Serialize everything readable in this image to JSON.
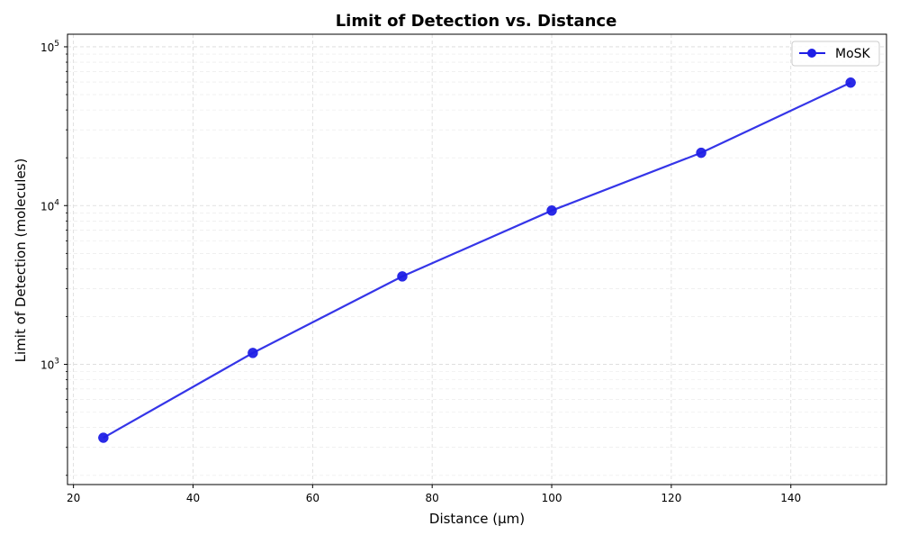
{
  "chart_data": {
    "type": "line",
    "title": "Limit of Detection vs. Distance",
    "xlabel": "Distance (μm)",
    "ylabel": "Limit of Detection (molecules)",
    "x_scale": "linear",
    "y_scale": "log",
    "xlim": [
      19,
      156
    ],
    "ylim": [
      175,
      120000
    ],
    "x_ticks": [
      20,
      40,
      60,
      80,
      100,
      120,
      140
    ],
    "y_ticks_major": [
      {
        "value": 1000,
        "base": "10",
        "exp": "3"
      },
      {
        "value": 10000,
        "base": "10",
        "exp": "4"
      },
      {
        "value": 100000,
        "base": "10",
        "exp": "5"
      }
    ],
    "grid": true,
    "grid_style": "dashed",
    "legend_position": "top-right",
    "series": [
      {
        "name": "MoSK",
        "color": "#1f1fe6",
        "marker": "circle",
        "x": [
          25,
          50,
          75,
          100,
          125,
          150
        ],
        "y": [
          345,
          1180,
          3580,
          9300,
          21500,
          59500
        ]
      }
    ]
  }
}
